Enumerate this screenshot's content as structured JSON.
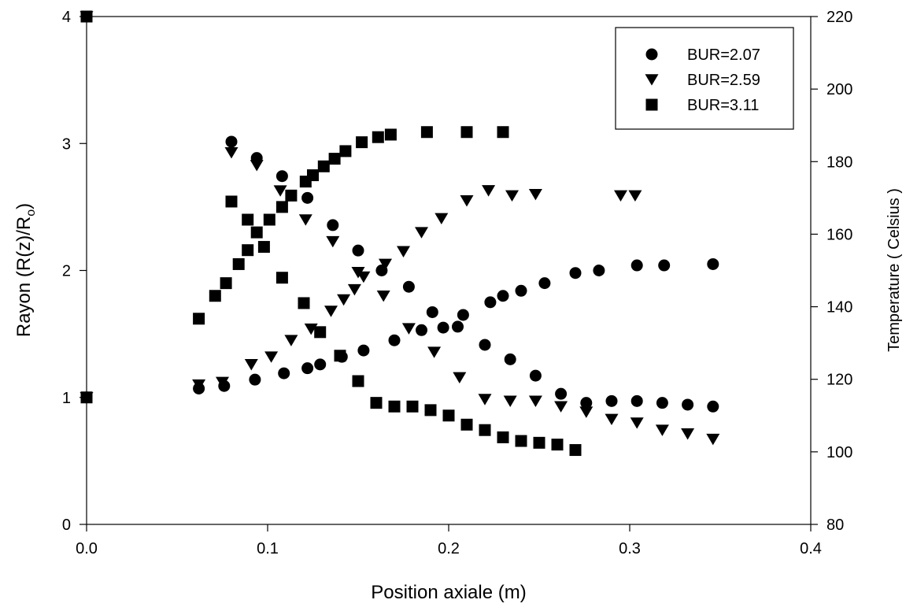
{
  "chart_data": {
    "type": "scatter",
    "xlabel": "Position axiale (m)",
    "ylabel_left": "Rayon (R(z)/R",
    "ylabel_left_sub": "o",
    "ylabel_left_end": ")",
    "ylabel_right": "Temperature ( Celsius )",
    "xlim": [
      0.0,
      0.4
    ],
    "ylim_left": [
      0,
      4
    ],
    "ylim_right": [
      80,
      220
    ],
    "x_ticks": [
      "0.0",
      "0.1",
      "0.2",
      "0.3",
      "0.4"
    ],
    "y_left_ticks": [
      "0",
      "1",
      "2",
      "3",
      "4"
    ],
    "y_right_ticks": [
      "80",
      "100",
      "120",
      "140",
      "160",
      "180",
      "200",
      "220"
    ],
    "grid": false,
    "legend_position": "top-right",
    "legend": [
      {
        "label": "BUR=2.07",
        "marker": "circle"
      },
      {
        "label": "BUR=2.59",
        "marker": "triangle-down"
      },
      {
        "label": "BUR=3.11",
        "marker": "square"
      }
    ],
    "series": [
      {
        "name": "BUR=2.07",
        "marker": "circle",
        "axis": "left",
        "kind": "radius",
        "points": [
          [
            0.0,
            1.0
          ],
          [
            0.062,
            1.07
          ],
          [
            0.076,
            1.09
          ],
          [
            0.093,
            1.14
          ],
          [
            0.109,
            1.19
          ],
          [
            0.122,
            1.23
          ],
          [
            0.129,
            1.26
          ],
          [
            0.141,
            1.32
          ],
          [
            0.153,
            1.37
          ],
          [
            0.17,
            1.45
          ],
          [
            0.185,
            1.53
          ],
          [
            0.197,
            1.55
          ],
          [
            0.208,
            1.65
          ],
          [
            0.223,
            1.75
          ],
          [
            0.23,
            1.8
          ],
          [
            0.24,
            1.84
          ],
          [
            0.253,
            1.9
          ],
          [
            0.27,
            1.98
          ],
          [
            0.283,
            2.0
          ],
          [
            0.304,
            2.04
          ],
          [
            0.319,
            2.04
          ],
          [
            0.346,
            2.05
          ]
        ]
      },
      {
        "name": "BUR=2.07",
        "marker": "circle",
        "axis": "right",
        "kind": "temperature",
        "points": [
          [
            0.0,
            220
          ],
          [
            0.08,
            185.5
          ],
          [
            0.094,
            181
          ],
          [
            0.108,
            176
          ],
          [
            0.122,
            170
          ],
          [
            0.136,
            162.5
          ],
          [
            0.15,
            155.5
          ],
          [
            0.163,
            150
          ],
          [
            0.178,
            145.5
          ],
          [
            0.191,
            138.5
          ],
          [
            0.205,
            134.5
          ],
          [
            0.22,
            129.5
          ],
          [
            0.234,
            125.5
          ],
          [
            0.248,
            121
          ],
          [
            0.262,
            116
          ],
          [
            0.276,
            113.5
          ],
          [
            0.29,
            114
          ],
          [
            0.304,
            114
          ],
          [
            0.318,
            113.5
          ],
          [
            0.332,
            113
          ],
          [
            0.346,
            112.5
          ]
        ]
      },
      {
        "name": "BUR=2.59",
        "marker": "triangle-down",
        "axis": "left",
        "kind": "radius",
        "points": [
          [
            0.0,
            1.0
          ],
          [
            0.062,
            1.1
          ],
          [
            0.075,
            1.12
          ],
          [
            0.091,
            1.26
          ],
          [
            0.102,
            1.32
          ],
          [
            0.113,
            1.45
          ],
          [
            0.124,
            1.54
          ],
          [
            0.135,
            1.68
          ],
          [
            0.142,
            1.77
          ],
          [
            0.148,
            1.85
          ],
          [
            0.153,
            1.95
          ],
          [
            0.165,
            2.05
          ],
          [
            0.175,
            2.15
          ],
          [
            0.185,
            2.3
          ],
          [
            0.196,
            2.41
          ],
          [
            0.21,
            2.55
          ],
          [
            0.222,
            2.63
          ],
          [
            0.235,
            2.59
          ],
          [
            0.248,
            2.6
          ],
          [
            0.295,
            2.59
          ],
          [
            0.303,
            2.59
          ]
        ]
      },
      {
        "name": "BUR=2.59",
        "marker": "triangle-down",
        "axis": "right",
        "kind": "temperature",
        "points": [
          [
            0.0,
            220
          ],
          [
            0.08,
            182.5
          ],
          [
            0.094,
            179
          ],
          [
            0.107,
            172
          ],
          [
            0.121,
            164
          ],
          [
            0.136,
            158
          ],
          [
            0.15,
            149.5
          ],
          [
            0.164,
            143
          ],
          [
            0.178,
            134
          ],
          [
            0.192,
            127.5
          ],
          [
            0.206,
            120.5
          ],
          [
            0.22,
            114.5
          ],
          [
            0.234,
            114
          ],
          [
            0.248,
            114
          ],
          [
            0.262,
            112.5
          ],
          [
            0.276,
            111
          ],
          [
            0.29,
            109
          ],
          [
            0.304,
            108
          ],
          [
            0.318,
            106
          ],
          [
            0.332,
            105
          ],
          [
            0.346,
            103.5
          ]
        ]
      },
      {
        "name": "BUR=3.11",
        "marker": "square",
        "axis": "left",
        "kind": "radius",
        "points": [
          [
            0.0,
            1.0
          ],
          [
            0.062,
            1.62
          ],
          [
            0.071,
            1.8
          ],
          [
            0.077,
            1.9
          ],
          [
            0.084,
            2.05
          ],
          [
            0.089,
            2.16
          ],
          [
            0.094,
            2.3
          ],
          [
            0.101,
            2.4
          ],
          [
            0.108,
            2.5
          ],
          [
            0.113,
            2.59
          ],
          [
            0.121,
            2.7
          ],
          [
            0.125,
            2.75
          ],
          [
            0.131,
            2.82
          ],
          [
            0.137,
            2.88
          ],
          [
            0.143,
            2.94
          ],
          [
            0.152,
            3.01
          ],
          [
            0.161,
            3.05
          ],
          [
            0.168,
            3.07
          ],
          [
            0.188,
            3.09
          ],
          [
            0.21,
            3.09
          ],
          [
            0.23,
            3.09
          ]
        ]
      },
      {
        "name": "BUR=3.11",
        "marker": "square",
        "axis": "right",
        "kind": "temperature",
        "points": [
          [
            0.0,
            220
          ],
          [
            0.08,
            169
          ],
          [
            0.089,
            164
          ],
          [
            0.098,
            156.5
          ],
          [
            0.108,
            148
          ],
          [
            0.12,
            141
          ],
          [
            0.129,
            133
          ],
          [
            0.14,
            126.5
          ],
          [
            0.15,
            119.5
          ],
          [
            0.16,
            113.5
          ],
          [
            0.17,
            112.5
          ],
          [
            0.18,
            112.5
          ],
          [
            0.19,
            111.5
          ],
          [
            0.2,
            110
          ],
          [
            0.21,
            107.5
          ],
          [
            0.22,
            106
          ],
          [
            0.23,
            104
          ],
          [
            0.24,
            103
          ],
          [
            0.25,
            102.5
          ],
          [
            0.26,
            102
          ],
          [
            0.27,
            100.5
          ]
        ]
      }
    ]
  }
}
